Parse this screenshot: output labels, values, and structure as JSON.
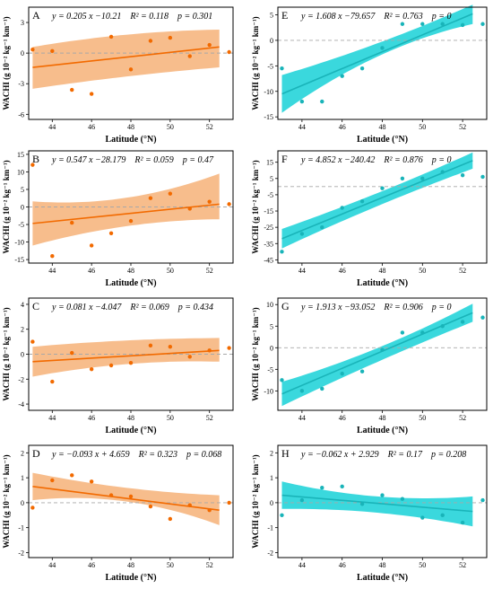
{
  "figure": {
    "x_label": "Latitude (°N)",
    "y_label": "WACHI (g 10⁻² kg⁻¹ km⁻¹)",
    "colors": {
      "orange": "#f26a00",
      "orange_band": "#f6b67f",
      "cyan": "#19b4b9",
      "cyan_band": "#2fd6db",
      "zero_line": "#a8a8a8"
    }
  },
  "chart_data": [
    {
      "letter": "A",
      "type": "scatter",
      "equation": "y = 0.205 x −10.21",
      "r2": "R² = 0.118",
      "p": "p = 0.301",
      "xlim": [
        42.8,
        53.2
      ],
      "ylim": [
        -6.5,
        4.5
      ],
      "x_ticks": [
        44,
        46,
        48,
        50,
        52
      ],
      "y_ticks": [
        -6,
        -3,
        0,
        3
      ],
      "color": "orange",
      "points": [
        [
          43,
          0.35
        ],
        [
          44,
          0.2
        ],
        [
          45,
          -3.6
        ],
        [
          46,
          -4.0
        ],
        [
          47,
          1.6
        ],
        [
          48,
          -1.6
        ],
        [
          49,
          1.2
        ],
        [
          50,
          1.5
        ],
        [
          51,
          -0.3
        ],
        [
          52,
          0.8
        ],
        [
          53,
          0.1
        ]
      ],
      "fit": [
        -1.4,
        0.6
      ],
      "band": [
        [
          -3.5,
          0.6
        ],
        [
          -2.3,
          1.8
        ],
        [
          -1.4,
          2.3
        ]
      ]
    },
    {
      "letter": "B",
      "type": "scatter",
      "equation": "y = 0.547 x −28.179",
      "r2": "R² = 0.059",
      "p": "p = 0.47",
      "xlim": [
        42.8,
        53.2
      ],
      "ylim": [
        -16,
        16
      ],
      "x_ticks": [
        44,
        46,
        48,
        50,
        52
      ],
      "y_ticks": [
        -15,
        -10,
        -5,
        0,
        5,
        10,
        15
      ],
      "color": "orange",
      "points": [
        [
          43,
          12
        ],
        [
          44,
          -14
        ],
        [
          45,
          -4.5
        ],
        [
          46,
          -11
        ],
        [
          47,
          -7.5
        ],
        [
          48,
          -4
        ],
        [
          49,
          2.5
        ],
        [
          50,
          3.8
        ],
        [
          51,
          -0.5
        ],
        [
          52,
          1.5
        ],
        [
          53,
          0.8
        ]
      ],
      "fit": [
        -4.7,
        0.8
      ],
      "band": [
        [
          -11,
          1.6
        ],
        [
          -5.5,
          2.6
        ],
        [
          -3.5,
          9.5
        ]
      ]
    },
    {
      "letter": "C",
      "type": "scatter",
      "equation": "y = 0.081 x −4.047",
      "r2": "R² = 0.069",
      "p": "p = 0.434",
      "xlim": [
        42.8,
        53.2
      ],
      "ylim": [
        -4.5,
        4.5
      ],
      "x_ticks": [
        44,
        46,
        48,
        50,
        52
      ],
      "y_ticks": [
        -4,
        -2,
        0,
        2,
        4
      ],
      "color": "orange",
      "points": [
        [
          43,
          1.0
        ],
        [
          44,
          -2.2
        ],
        [
          45,
          0.1
        ],
        [
          46,
          -1.2
        ],
        [
          47,
          -0.9
        ],
        [
          48,
          -0.7
        ],
        [
          49,
          0.7
        ],
        [
          50,
          0.6
        ],
        [
          51,
          -0.2
        ],
        [
          52,
          0.3
        ],
        [
          53,
          0.5
        ]
      ],
      "fit": [
        -0.6,
        0.3
      ],
      "band": [
        [
          -1.8,
          0.6
        ],
        [
          -0.8,
          1.1
        ],
        [
          -0.6,
          1.3
        ]
      ]
    },
    {
      "letter": "D",
      "type": "scatter",
      "equation": "y = −0.093 x + 4.659",
      "r2": "R² = 0.323",
      "p": "p = 0.068",
      "xlim": [
        42.8,
        53.2
      ],
      "ylim": [
        -2.2,
        2.3
      ],
      "x_ticks": [
        44,
        46,
        48,
        50,
        52
      ],
      "y_ticks": [
        -2,
        -1,
        0,
        1,
        2
      ],
      "color": "orange",
      "points": [
        [
          43,
          -0.2
        ],
        [
          44,
          0.9
        ],
        [
          45,
          1.1
        ],
        [
          46,
          0.85
        ],
        [
          47,
          0.3
        ],
        [
          48,
          0.25
        ],
        [
          49,
          -0.15
        ],
        [
          50,
          -0.65
        ],
        [
          51,
          -0.1
        ],
        [
          52,
          -0.3
        ],
        [
          53,
          0.0
        ]
      ],
      "fit": [
        0.65,
        -0.3
      ],
      "band": [
        [
          0.1,
          1.2
        ],
        [
          0.05,
          0.6
        ],
        [
          -0.9,
          0.3
        ]
      ]
    },
    {
      "letter": "E",
      "type": "scatter",
      "equation": "y = 1.608 x −79.657",
      "r2": "R² = 0.763",
      "p": "p = 0",
      "xlim": [
        42.8,
        53.2
      ],
      "ylim": [
        -15.5,
        6.5
      ],
      "x_ticks": [
        44,
        46,
        48,
        50,
        52
      ],
      "y_ticks": [
        -15,
        -10,
        -5,
        0,
        5
      ],
      "color": "cyan",
      "points": [
        [
          43,
          -5.5
        ],
        [
          44,
          -12
        ],
        [
          45,
          -12
        ],
        [
          46,
          -7
        ],
        [
          47,
          -5.5
        ],
        [
          48,
          -1.5
        ],
        [
          49,
          3.2
        ],
        [
          50,
          3.2
        ],
        [
          51,
          3.2
        ],
        [
          52,
          3.0
        ],
        [
          53,
          3.2
        ]
      ],
      "fit": [
        -10.5,
        5.2
      ],
      "band": [
        [
          -14.2,
          -6.8
        ],
        [
          -3.2,
          -0.6
        ],
        [
          3.2,
          7.0
        ]
      ]
    },
    {
      "letter": "F",
      "type": "scatter",
      "equation": "y = 4.852 x −240.42",
      "r2": "R² = 0.876",
      "p": "p = 0",
      "xlim": [
        42.8,
        53.2
      ],
      "ylim": [
        -47,
        22
      ],
      "x_ticks": [
        44,
        46,
        48,
        50,
        52
      ],
      "y_ticks": [
        -45,
        -35,
        -25,
        -15,
        -5,
        5,
        15
      ],
      "color": "cyan",
      "points": [
        [
          43,
          -40
        ],
        [
          44,
          -29
        ],
        [
          45,
          -25
        ],
        [
          46,
          -13
        ],
        [
          47,
          -9
        ],
        [
          48,
          -1
        ],
        [
          49,
          5
        ],
        [
          50,
          5
        ],
        [
          51,
          9
        ],
        [
          52,
          7
        ],
        [
          53,
          6
        ]
      ],
      "fit": [
        -32,
        16
      ],
      "band": [
        [
          -38,
          -26
        ],
        [
          -12,
          -4
        ],
        [
          11,
          21
        ]
      ]
    },
    {
      "letter": "G",
      "type": "scatter",
      "equation": "y = 1.913 x −93.052",
      "r2": "R² = 0.906",
      "p": "p = 0",
      "xlim": [
        42.8,
        53.2
      ],
      "ylim": [
        -14.5,
        11.5
      ],
      "x_ticks": [
        44,
        46,
        48,
        50,
        52
      ],
      "y_ticks": [
        -15,
        -10,
        -5,
        0,
        5,
        10
      ],
      "color": "cyan",
      "points": [
        [
          43,
          -7.5
        ],
        [
          44,
          -10
        ],
        [
          45,
          -9.5
        ],
        [
          46,
          -6
        ],
        [
          47,
          -5.5
        ],
        [
          48,
          -0.5
        ],
        [
          49,
          3.5
        ],
        [
          50,
          3.5
        ],
        [
          51,
          5
        ],
        [
          52,
          6
        ],
        [
          53,
          7
        ]
      ],
      "fit": [
        -10.7,
        8.1
      ],
      "band": [
        [
          -13.5,
          -7.9
        ],
        [
          -3.3,
          -0.1
        ],
        [
          6.0,
          10.2
        ]
      ]
    },
    {
      "letter": "H",
      "type": "scatter",
      "equation": "y = −0.062 x + 2.929",
      "r2": "R² = 0.17",
      "p": "p = 0.208",
      "xlim": [
        42.8,
        53.2
      ],
      "ylim": [
        -2.2,
        2.3
      ],
      "x_ticks": [
        44,
        46,
        48,
        50,
        52
      ],
      "y_ticks": [
        -2,
        -1,
        0,
        1,
        2
      ],
      "color": "cyan",
      "points": [
        [
          43,
          -0.5
        ],
        [
          44,
          0.1
        ],
        [
          45,
          0.6
        ],
        [
          46,
          0.65
        ],
        [
          47,
          -0.05
        ],
        [
          48,
          0.3
        ],
        [
          49,
          0.15
        ],
        [
          50,
          -0.6
        ],
        [
          51,
          -0.5
        ],
        [
          52,
          -0.8
        ],
        [
          53,
          0.1
        ]
      ],
      "fit": [
        0.3,
        -0.35
      ],
      "band": [
        [
          -0.25,
          0.85
        ],
        [
          -0.4,
          0.25
        ],
        [
          -0.95,
          0.25
        ]
      ]
    }
  ]
}
